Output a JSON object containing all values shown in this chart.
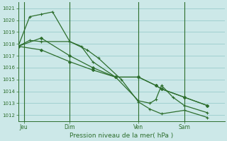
{
  "title": "Pression niveau de la mer( hPa )",
  "bg_color": "#cce8e8",
  "grid_color": "#99cccc",
  "line_color": "#2d6e2d",
  "ylim": [
    1011.5,
    1021.5
  ],
  "yticks": [
    1012,
    1013,
    1014,
    1015,
    1016,
    1017,
    1018,
    1019,
    1020,
    1021
  ],
  "xlim": [
    0,
    36
  ],
  "day_labels": [
    "Jeu",
    "Dim",
    "Ven",
    "Sam"
  ],
  "day_positions": [
    1,
    9,
    21,
    29
  ],
  "lines": [
    {
      "points_x": [
        0,
        2,
        4,
        9,
        12,
        14,
        18,
        21,
        23,
        25,
        29,
        33
      ],
      "points_y": [
        1017.8,
        1018.3,
        1018.2,
        1018.2,
        1017.5,
        1016.8,
        1015.0,
        1013.1,
        1012.5,
        1012.1,
        1012.4,
        1011.8
      ],
      "marker": "+"
    },
    {
      "points_x": [
        0,
        2,
        4,
        6,
        9,
        11,
        13,
        17,
        21,
        23,
        24,
        25,
        27,
        29,
        33
      ],
      "points_y": [
        1017.8,
        1020.3,
        1020.5,
        1020.7,
        1018.2,
        1017.8,
        1016.5,
        1015.2,
        1013.2,
        1013.0,
        1013.3,
        1014.5,
        1013.5,
        1012.8,
        1012.2
      ],
      "marker": "+"
    },
    {
      "points_x": [
        0,
        4,
        9,
        13,
        17,
        21,
        24,
        25,
        29,
        33
      ],
      "points_y": [
        1017.8,
        1018.5,
        1017.0,
        1016.0,
        1015.2,
        1015.2,
        1014.5,
        1014.2,
        1013.5,
        1012.8
      ],
      "marker": "D"
    },
    {
      "points_x": [
        0,
        4,
        9,
        13,
        17,
        21,
        24,
        25,
        29,
        33
      ],
      "points_y": [
        1017.8,
        1017.5,
        1016.5,
        1015.8,
        1015.2,
        1015.2,
        1014.5,
        1014.2,
        1013.5,
        1012.8
      ],
      "marker": "D"
    }
  ]
}
